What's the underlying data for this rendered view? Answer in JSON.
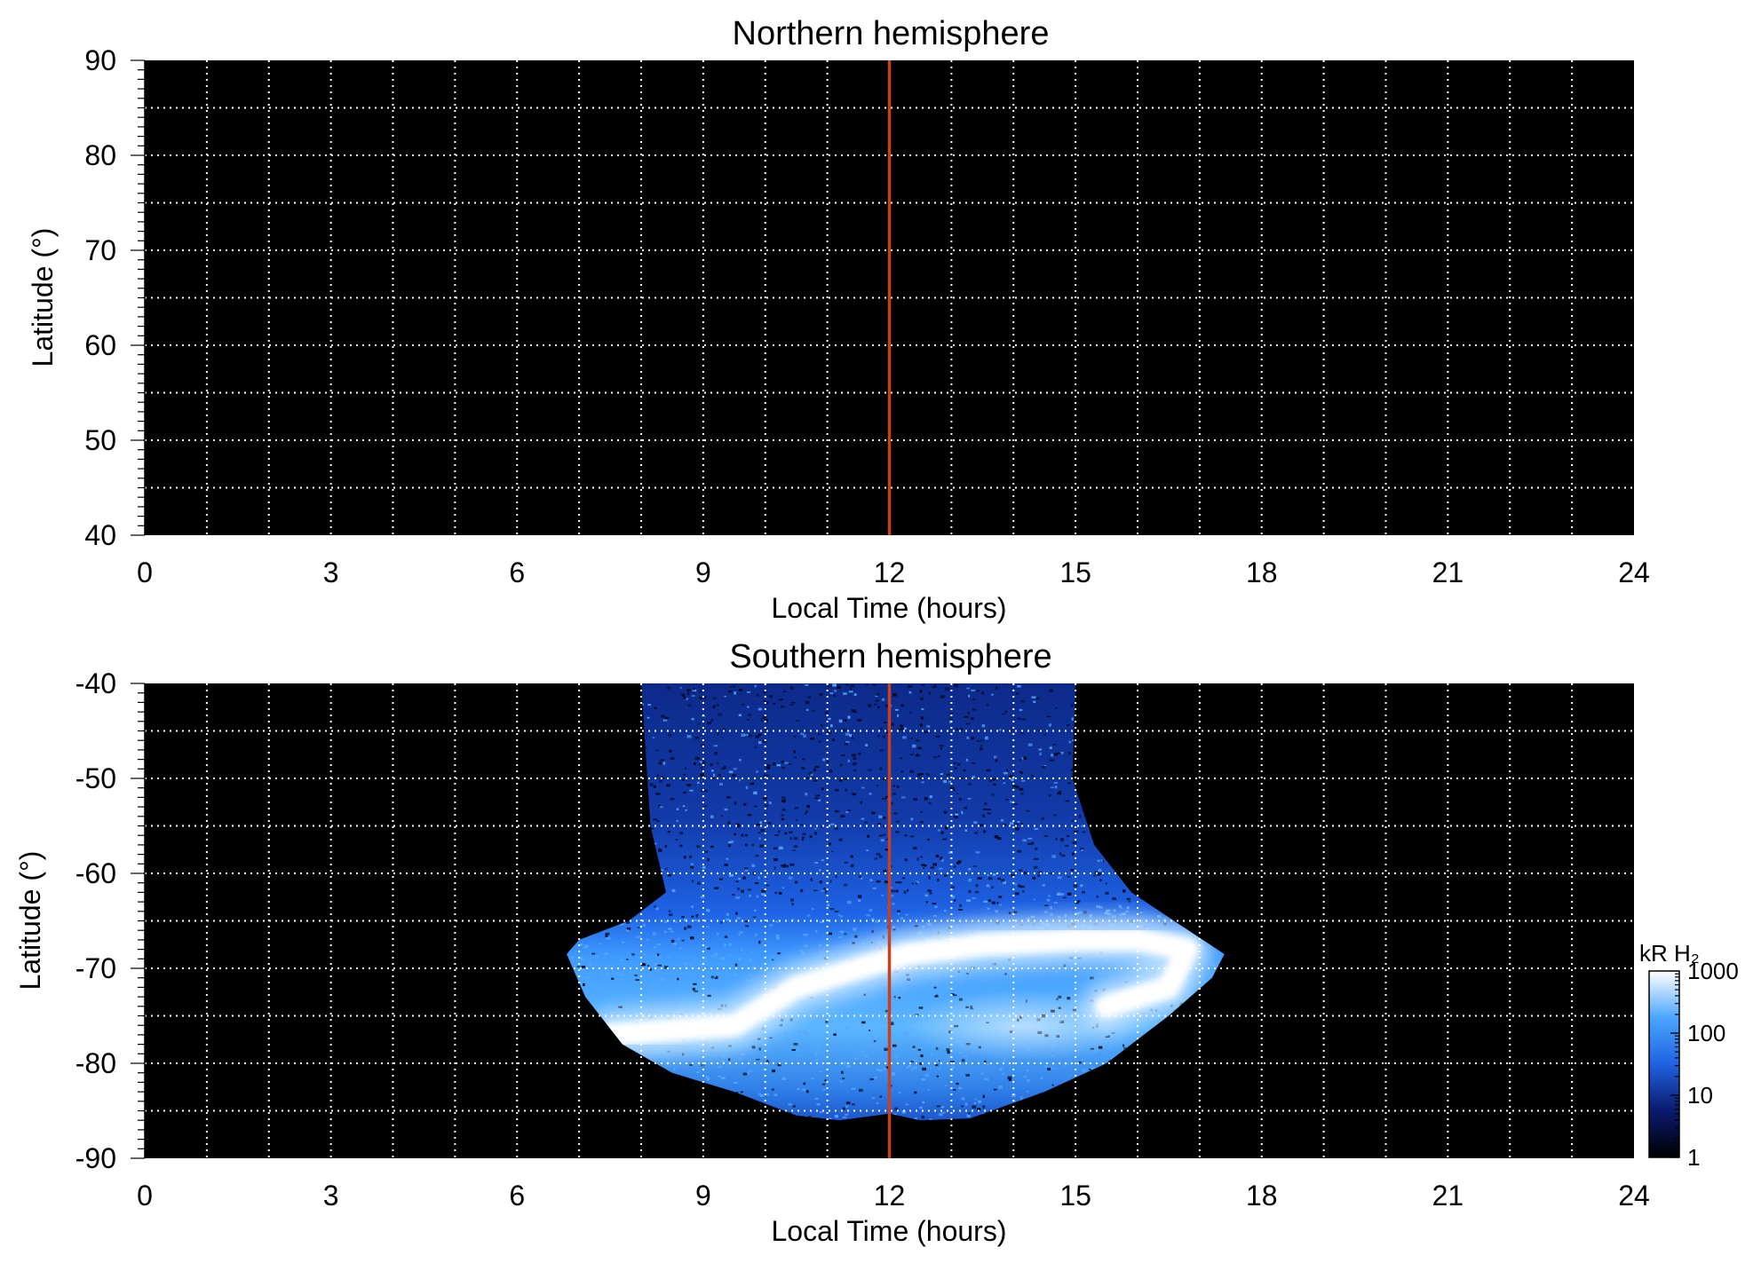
{
  "chart_data": [
    {
      "type": "heatmap",
      "title": "Northern hemisphere",
      "xlabel": "Local Time (hours)",
      "ylabel": "Latitude (°)",
      "xlim": [
        0,
        24
      ],
      "ylim": [
        40,
        90
      ],
      "xticks": [
        0,
        3,
        6,
        9,
        12,
        15,
        18,
        21,
        24
      ],
      "yticks": [
        40,
        50,
        60,
        70,
        80,
        90
      ],
      "grid": true,
      "background": "#000000",
      "reference_line": {
        "x": 12,
        "color": "#c8401c"
      },
      "emission": "none"
    },
    {
      "type": "heatmap",
      "title": "Southern hemisphere",
      "xlabel": "Local Time (hours)",
      "ylabel": "Latitude (°)",
      "xlim": [
        0,
        24
      ],
      "ylim": [
        -90,
        -40
      ],
      "xticks": [
        0,
        3,
        6,
        9,
        12,
        15,
        18,
        21,
        24
      ],
      "yticks": [
        -90,
        -80,
        -70,
        -60,
        -50,
        -40
      ],
      "grid": true,
      "background": "#000000",
      "reference_line": {
        "x": 12,
        "color": "#c8401c"
      },
      "coverage_left_edge": [
        [
          8.0,
          -40
        ],
        [
          8.15,
          -55
        ],
        [
          8.4,
          -62
        ],
        [
          7.8,
          -65
        ],
        [
          7.0,
          -67
        ],
        [
          6.8,
          -68.5
        ],
        [
          7.1,
          -73
        ],
        [
          7.7,
          -78
        ],
        [
          8.5,
          -81
        ],
        [
          9.5,
          -83
        ],
        [
          10.5,
          -85.5
        ],
        [
          11.2,
          -86
        ],
        [
          12,
          -85.3
        ]
      ],
      "coverage_right_edge": [
        [
          15.0,
          -40
        ],
        [
          14.95,
          -50
        ],
        [
          15.3,
          -57
        ],
        [
          15.9,
          -62
        ],
        [
          16.7,
          -65.5
        ],
        [
          17.4,
          -68.5
        ],
        [
          17.2,
          -71
        ],
        [
          16.5,
          -75
        ],
        [
          15.5,
          -80
        ],
        [
          14.5,
          -83
        ],
        [
          13.3,
          -85.8
        ],
        [
          12.5,
          -86
        ],
        [
          12,
          -85.3
        ]
      ],
      "auroral_oval": [
        [
          7.5,
          -77
        ],
        [
          9.5,
          -76
        ],
        [
          10.5,
          -72
        ],
        [
          11.5,
          -70
        ],
        [
          12.3,
          -68.5
        ],
        [
          13.5,
          -67.5
        ],
        [
          15,
          -67
        ],
        [
          16,
          -67
        ],
        [
          16.8,
          -68
        ],
        [
          16.5,
          -72
        ],
        [
          15.5,
          -74
        ]
      ],
      "colorbar": {
        "label": "kR H₂",
        "scale": "log",
        "ticks": [
          "1",
          "10",
          "100",
          "1000"
        ],
        "range": [
          1,
          1000
        ],
        "colors": [
          "#000000",
          "#0a1a6e",
          "#1f62e0",
          "#4ca6ff",
          "#ffffff"
        ]
      }
    }
  ]
}
